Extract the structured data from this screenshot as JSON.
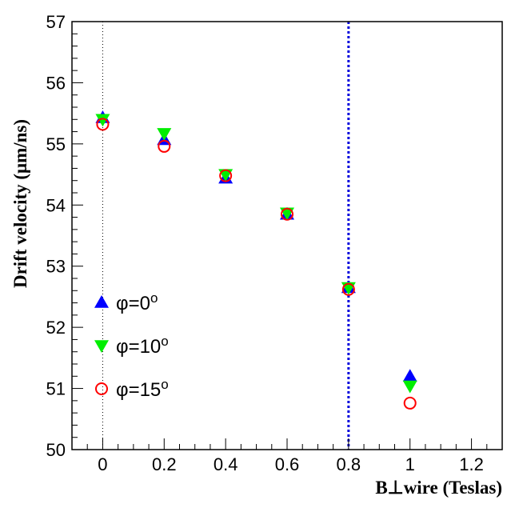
{
  "chart_data": {
    "type": "scatter",
    "xlabel": "B⊥wire (Teslas)",
    "ylabel": "Drift velocity (μm/ns)",
    "xlim": [
      -0.1,
      1.3
    ],
    "ylim": [
      50,
      57
    ],
    "x_ticks": [
      "0",
      "0.2",
      "0.4",
      "0.6",
      "0.8",
      "1",
      "1.2"
    ],
    "y_ticks": [
      "50",
      "51",
      "52",
      "53",
      "54",
      "55",
      "56",
      "57"
    ],
    "grid": false,
    "legend_position": "left",
    "reference_lines": [
      {
        "axis": "x",
        "value": 0,
        "style": "dotted",
        "color": "#000000"
      },
      {
        "axis": "x",
        "value": 0.8,
        "style": "dotted",
        "color": "#0000dd"
      }
    ],
    "series": [
      {
        "name": "φ=0",
        "name_suffix": "o",
        "marker": "triangle-up",
        "color": "#0000ff",
        "x": [
          0,
          0.2,
          0.4,
          0.6,
          0.8,
          1.0
        ],
        "y": [
          55.43,
          55.07,
          54.44,
          53.85,
          52.65,
          51.2
        ]
      },
      {
        "name": "φ=10",
        "name_suffix": "o",
        "marker": "triangle-down",
        "color": "#00ee00",
        "x": [
          0,
          0.2,
          0.4,
          0.6,
          0.8,
          1.0
        ],
        "y": [
          55.4,
          55.17,
          54.5,
          53.87,
          52.65,
          51.04
        ]
      },
      {
        "name": "φ=15",
        "name_suffix": "o",
        "marker": "circle-open",
        "color": "#ff0000",
        "x": [
          0,
          0.2,
          0.4,
          0.6,
          0.8,
          1.0
        ],
        "y": [
          55.32,
          54.96,
          54.48,
          53.85,
          52.62,
          50.76
        ]
      }
    ]
  }
}
